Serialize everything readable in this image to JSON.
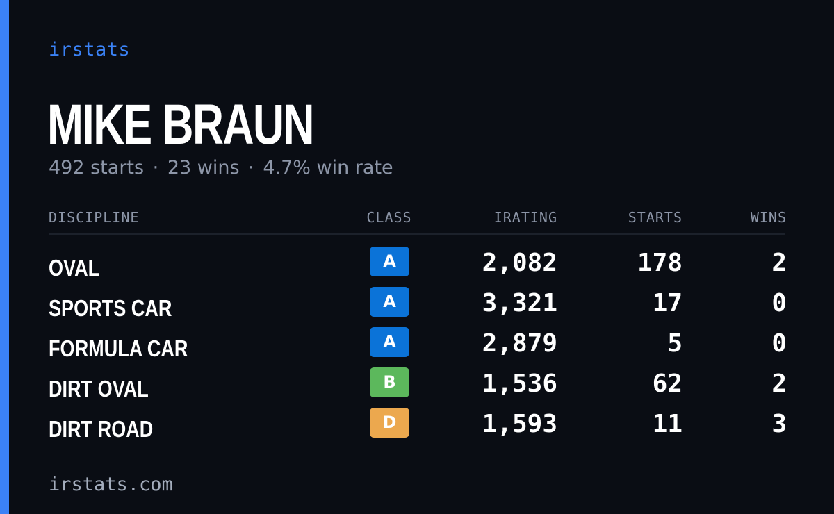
{
  "brand": "irstats",
  "driver": {
    "name": "MIKE BRAUN",
    "starts_text": "492 starts",
    "wins_text": "23 wins",
    "win_rate_text": "4.7% win rate",
    "separator": "·"
  },
  "table": {
    "headers": {
      "discipline": "DISCIPLINE",
      "class": "CLASS",
      "irating": "IRATING",
      "starts": "STARTS",
      "wins": "WINS"
    },
    "rows": [
      {
        "discipline": "OVAL",
        "class": "A",
        "irating": "2,082",
        "starts": "178",
        "wins": "2"
      },
      {
        "discipline": "SPORTS CAR",
        "class": "A",
        "irating": "3,321",
        "starts": "17",
        "wins": "0"
      },
      {
        "discipline": "FORMULA CAR",
        "class": "A",
        "irating": "2,879",
        "starts": "5",
        "wins": "0"
      },
      {
        "discipline": "DIRT OVAL",
        "class": "B",
        "irating": "1,536",
        "starts": "62",
        "wins": "2"
      },
      {
        "discipline": "DIRT ROAD",
        "class": "D",
        "irating": "1,593",
        "starts": "11",
        "wins": "3"
      }
    ]
  },
  "class_colors": {
    "A": "#0b73d8",
    "B": "#5cb85c",
    "D": "#eca84e"
  },
  "accent_color": "#3b82f6",
  "footer": "irstats.com"
}
